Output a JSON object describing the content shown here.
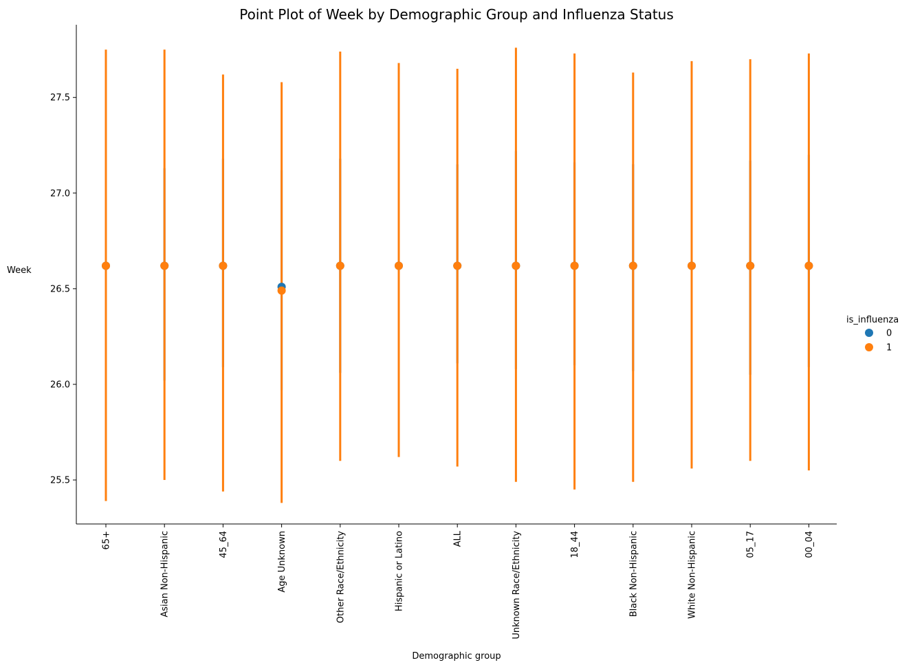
{
  "chart_data": {
    "type": "point",
    "title": "Point Plot of Week by Demographic Group and Influenza Status",
    "xlabel": "Demographic group",
    "ylabel": "Week",
    "ylim": [
      25.27,
      27.88
    ],
    "yticks": [
      25.5,
      26.0,
      26.5,
      27.0,
      27.5
    ],
    "yticklabels": [
      "25.5",
      "26.0",
      "26.5",
      "27.0",
      "27.5"
    ],
    "categories": [
      "65+",
      "Asian Non-Hispanic",
      "45_64",
      "Age Unknown",
      "Other Race/Ethnicity",
      "Hispanic or Latino",
      "ALL",
      "Unknown Race/Ethnicity",
      "18_44",
      "Black Non-Hispanic",
      "White Non-Hispanic",
      "05_17",
      "00_04"
    ],
    "legend": {
      "title": "is_influenza",
      "placement": "right"
    },
    "series": [
      {
        "name": "0",
        "color": "#1f77b4",
        "values": [
          26.62,
          26.62,
          26.62,
          26.51,
          26.62,
          26.62,
          26.62,
          26.62,
          26.62,
          26.62,
          26.62,
          26.62,
          26.62
        ],
        "ci_low": [
          26.08,
          26.02,
          26.09,
          25.97,
          26.06,
          26.03,
          26.11,
          26.08,
          26.1,
          26.07,
          26.07,
          26.05,
          26.09
        ],
        "ci_high": [
          27.14,
          27.13,
          27.18,
          27.12,
          27.18,
          27.16,
          27.15,
          27.22,
          27.16,
          27.15,
          27.15,
          27.17,
          27.2
        ]
      },
      {
        "name": "1",
        "color": "#ff7f0e",
        "values": [
          26.62,
          26.62,
          26.62,
          26.49,
          26.62,
          26.62,
          26.62,
          26.62,
          26.62,
          26.62,
          26.62,
          26.62,
          26.62
        ],
        "ci_low": [
          25.39,
          25.5,
          25.44,
          25.38,
          25.6,
          25.62,
          25.57,
          25.49,
          25.45,
          25.49,
          25.56,
          25.6,
          25.55
        ],
        "ci_high": [
          27.75,
          27.75,
          27.62,
          27.58,
          27.74,
          27.68,
          27.65,
          27.76,
          27.73,
          27.63,
          27.69,
          27.7,
          27.73
        ]
      }
    ]
  }
}
